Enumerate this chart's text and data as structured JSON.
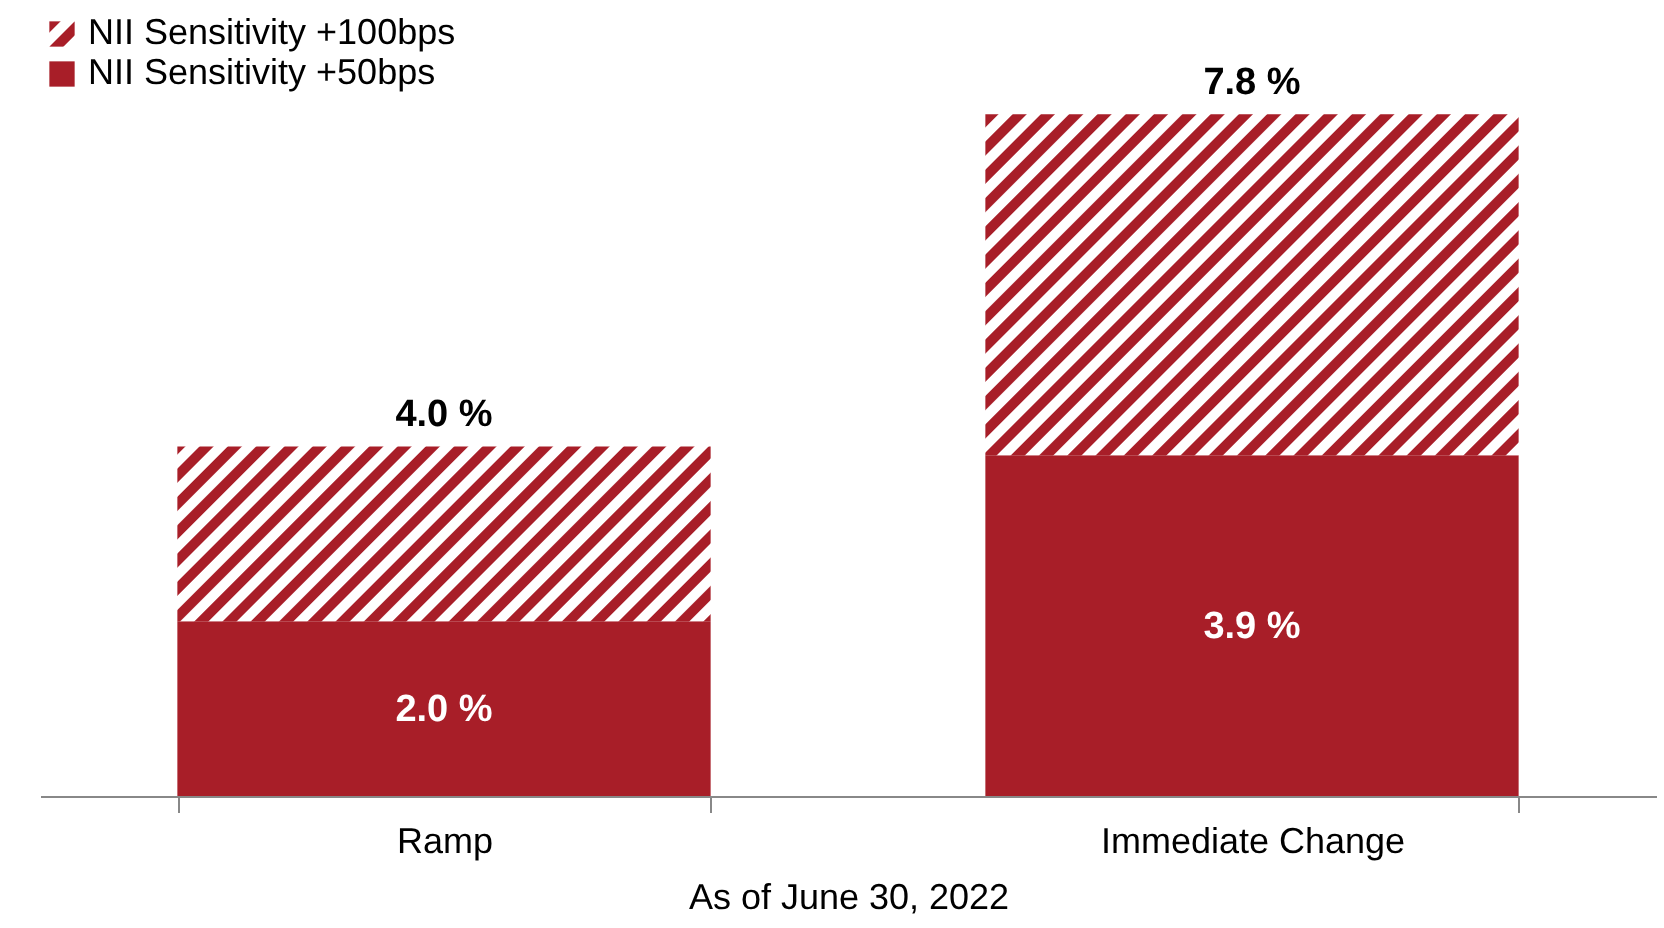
{
  "chart_data": {
    "type": "bar",
    "stacked": true,
    "xlabel": "As of June 30, 2022",
    "categories": [
      "Ramp",
      "Immediate Change"
    ],
    "series": [
      {
        "name": "NII Sensitivity +50bps",
        "color": "#a81e28",
        "values": [
          2.0,
          3.9
        ],
        "value_labels": [
          "2.0 %",
          "3.9 %"
        ]
      },
      {
        "name": "NII Sensitivity +100bps",
        "color": "#a81e28",
        "values": [
          2.0,
          3.9
        ]
      }
    ],
    "totals": [
      "4.0 %",
      "7.8 %"
    ],
    "legend": "top left"
  }
}
